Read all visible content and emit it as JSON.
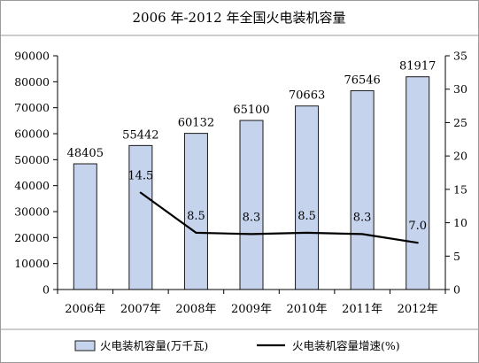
{
  "chart_data": {
    "type": "bar",
    "title": "2006 年-2012 年全国火电装机容量",
    "categories": [
      "2006年",
      "2007年",
      "2008年",
      "2009年",
      "2010年",
      "2011年",
      "2012年"
    ],
    "series": [
      {
        "name": "火电装机容量(万千瓦)",
        "type": "bar",
        "axis": "left",
        "values": [
          48405,
          55442,
          60132,
          65100,
          70663,
          76546,
          81917
        ],
        "labels": [
          "48405",
          "55442",
          "60132",
          "65100",
          "70663",
          "76546",
          "81917"
        ],
        "color": "#c5d3ec"
      },
      {
        "name": "火电装机容量增速(%)",
        "type": "line",
        "axis": "right",
        "values": [
          null,
          14.5,
          8.5,
          8.3,
          8.5,
          8.3,
          7.0
        ],
        "labels": [
          "",
          "14.5",
          "8.5",
          "8.3",
          "8.5",
          "8.3",
          "7.0"
        ],
        "color": "#000000"
      }
    ],
    "y_left": {
      "range": [
        0,
        90000
      ],
      "ticks": [
        0,
        10000,
        20000,
        30000,
        40000,
        50000,
        60000,
        70000,
        80000,
        90000
      ],
      "tick_labels": [
        "0",
        "10000",
        "20000",
        "30000",
        "40000",
        "50000",
        "60000",
        "70000",
        "80000",
        "90000"
      ]
    },
    "y_right": {
      "range": [
        0,
        35
      ],
      "ticks": [
        0,
        5,
        10,
        15,
        20,
        25,
        30,
        35
      ],
      "tick_labels": [
        "0",
        "5",
        "10",
        "15",
        "20",
        "25",
        "30",
        "35"
      ]
    },
    "grid": false,
    "legend_position": "bottom"
  },
  "colors": {
    "bar_fill": "#c5d3ec",
    "bar_stroke": "#1a1a1a",
    "line": "#000000",
    "axis": "#000000",
    "frame": "#9a9a9a"
  }
}
